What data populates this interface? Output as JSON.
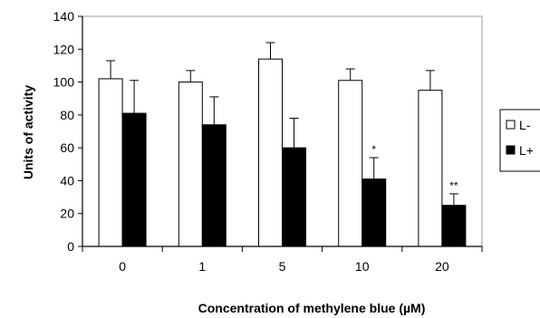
{
  "chart_data": {
    "type": "bar",
    "xlabel": "Concentration of methylene blue (µM)",
    "ylabel": "Units of activity",
    "categories": [
      "0",
      "1",
      "5",
      "10",
      "20"
    ],
    "ylim": [
      0,
      140
    ],
    "yticks": [
      0,
      20,
      40,
      60,
      80,
      100,
      120,
      140
    ],
    "grid": false,
    "legend_position": "right",
    "series": [
      {
        "name": "L-",
        "fill": "#ffffff",
        "values": [
          102,
          100,
          114,
          101,
          95
        ],
        "errors": [
          11,
          7,
          10,
          7,
          12
        ],
        "annotations": [
          "",
          "",
          "",
          "",
          ""
        ]
      },
      {
        "name": "L+",
        "fill": "#000000",
        "values": [
          81,
          74,
          60,
          41,
          25
        ],
        "errors": [
          20,
          17,
          18,
          13,
          7
        ],
        "annotations": [
          "",
          "",
          "",
          "*",
          "**"
        ]
      }
    ]
  }
}
